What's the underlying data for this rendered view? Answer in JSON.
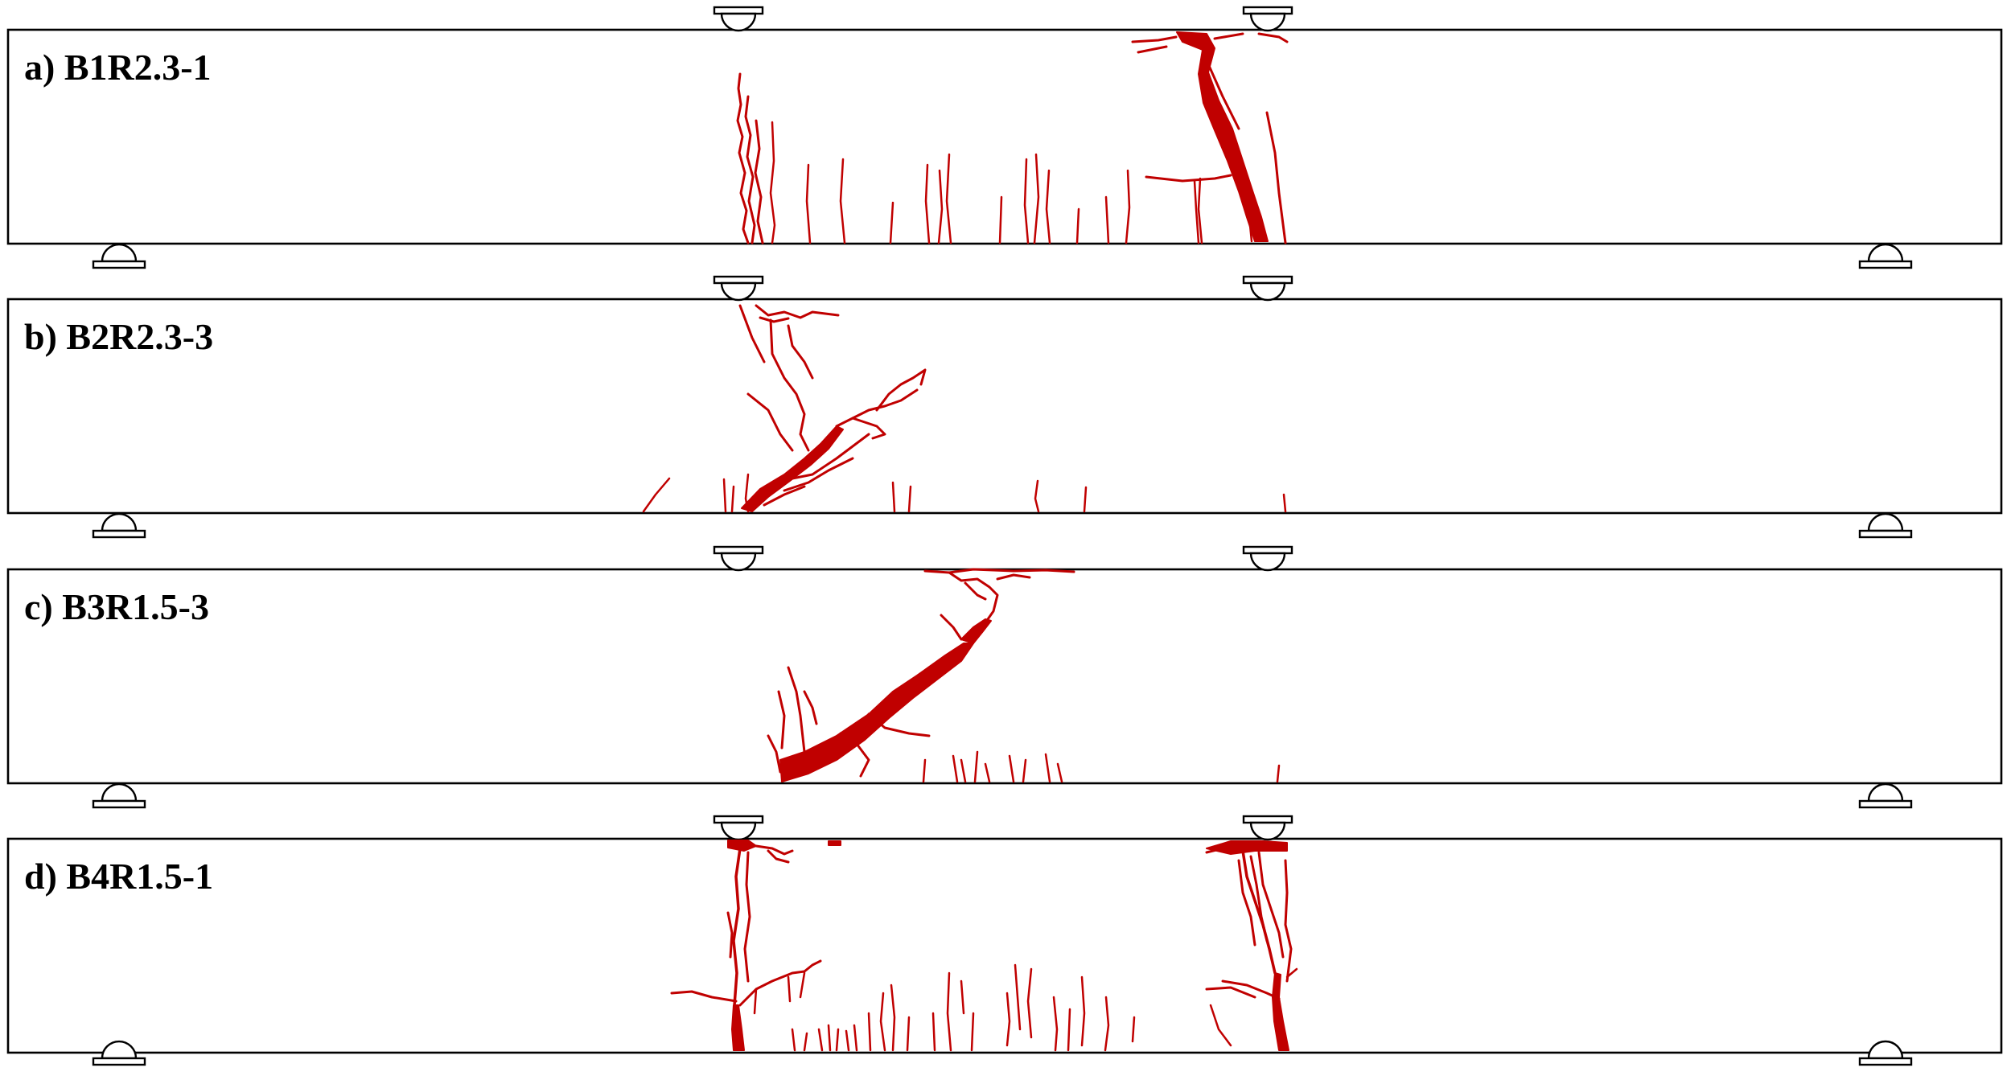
{
  "colors": {
    "crack": "#c00000",
    "outline": "#000000",
    "background": "#ffffff"
  },
  "panels": [
    {
      "label": "a) B1R2.3-1"
    },
    {
      "label": "b) B2R2.3-3"
    },
    {
      "label": "c) B3R1.5-3"
    },
    {
      "label": "d) B4R1.5-1"
    }
  ]
}
